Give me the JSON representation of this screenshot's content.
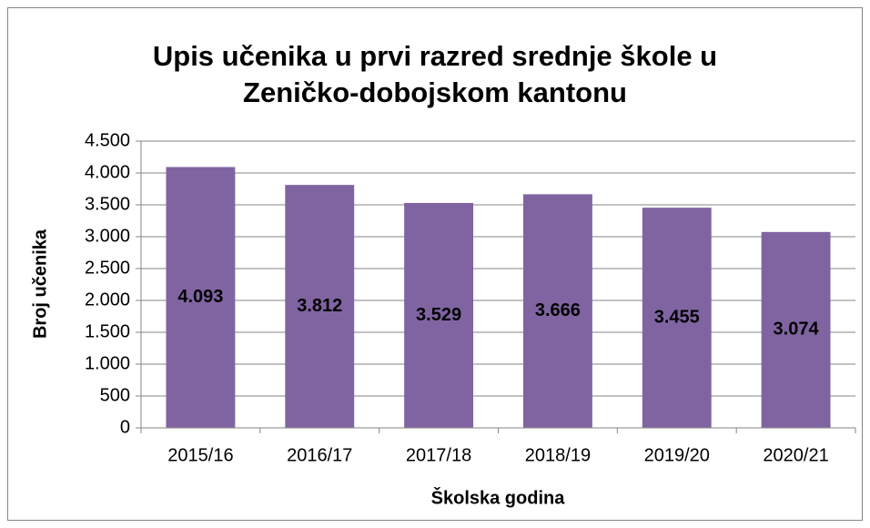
{
  "chart_data": {
    "type": "bar",
    "title": "Upis učenika u prvi razred srednje škole u Zeničko-dobojskom kantonu",
    "x_label": "Školska godina",
    "y_label": "Broj učenika",
    "categories": [
      "2015/16",
      "2016/17",
      "2017/18",
      "2018/19",
      "2019/20",
      "2020/21"
    ],
    "values": [
      4093,
      3812,
      3529,
      3666,
      3455,
      3074
    ],
    "value_labels": [
      "4.093",
      "3.812",
      "3.529",
      "3.666",
      "3.455",
      "3.074"
    ],
    "color": "#8064a2",
    "ylim": [
      0,
      4500
    ],
    "yticks": [
      0,
      500,
      {
        "value": 1000,
        "label": "1.000"
      },
      {
        "value": 1500,
        "label": "1.500"
      },
      {
        "value": 2000,
        "label": "2.000"
      },
      {
        "value": 2500,
        "label": "2.500"
      },
      {
        "value": 3000,
        "label": "3.000"
      },
      {
        "value": 3500,
        "label": "3.500"
      },
      {
        "value": 4000,
        "label": "4.000"
      },
      {
        "value": 4500,
        "label": "4.500"
      }
    ],
    "grid": true
  }
}
